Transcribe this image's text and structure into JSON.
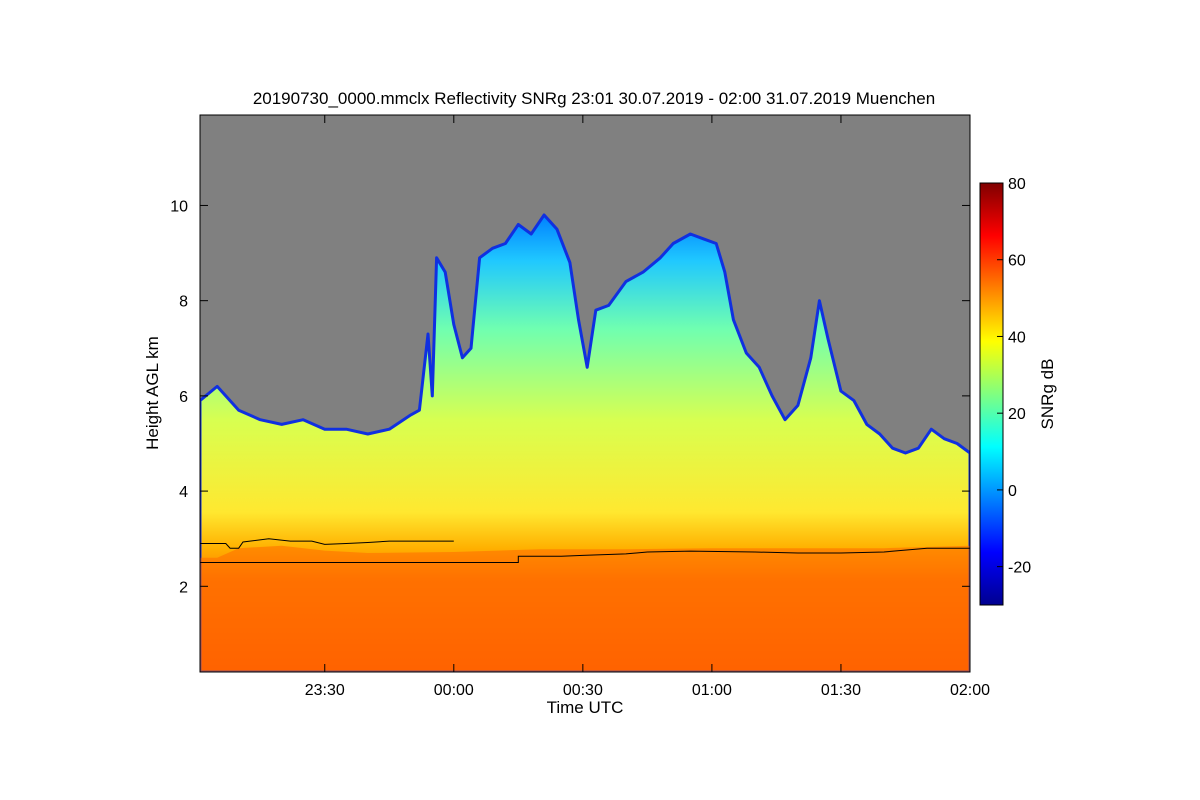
{
  "chart_data": {
    "type": "heatmap",
    "title": "20190730_0000.mmclx Reflectivity SNRg   23:01 30.07.2019 - 02:00 31.07.2019 Muenchen",
    "xlabel": "Time UTC",
    "ylabel": "Height AGL km",
    "x_ticks": [
      "23:30",
      "00:00",
      "00:30",
      "01:00",
      "01:30",
      "02:00"
    ],
    "x_tick_minutes": [
      -30,
      0,
      30,
      60,
      90,
      120
    ],
    "xlim_minutes": [
      -59,
      120
    ],
    "y_ticks": [
      2,
      4,
      6,
      8,
      10
    ],
    "ylim": [
      0.2,
      11.9
    ],
    "colorbar": {
      "label": "SNRg dB",
      "ticks": [
        80,
        60,
        40,
        20,
        0,
        -20
      ],
      "range": [
        -30,
        80
      ],
      "colormap": [
        "#00008f",
        "#0000ff",
        "#0080ff",
        "#00ffff",
        "#80ff80",
        "#ffff00",
        "#ff8000",
        "#ff0000",
        "#800000"
      ]
    },
    "background_color": "#808080",
    "cloud_top_km": [
      [
        -59,
        5.9
      ],
      [
        -55,
        6.2
      ],
      [
        -50,
        5.7
      ],
      [
        -45,
        5.5
      ],
      [
        -40,
        5.4
      ],
      [
        -35,
        5.5
      ],
      [
        -30,
        5.3
      ],
      [
        -25,
        5.3
      ],
      [
        -20,
        5.2
      ],
      [
        -15,
        5.3
      ],
      [
        -10,
        5.6
      ],
      [
        -8,
        5.7
      ],
      [
        -6,
        7.3
      ],
      [
        -5,
        6.0
      ],
      [
        -4,
        8.9
      ],
      [
        -2,
        8.6
      ],
      [
        0,
        7.5
      ],
      [
        2,
        6.8
      ],
      [
        4,
        7.0
      ],
      [
        6,
        8.9
      ],
      [
        9,
        9.1
      ],
      [
        12,
        9.2
      ],
      [
        15,
        9.6
      ],
      [
        18,
        9.4
      ],
      [
        21,
        9.8
      ],
      [
        24,
        9.5
      ],
      [
        27,
        8.8
      ],
      [
        29,
        7.6
      ],
      [
        31,
        6.6
      ],
      [
        33,
        7.8
      ],
      [
        36,
        7.9
      ],
      [
        40,
        8.4
      ],
      [
        44,
        8.6
      ],
      [
        48,
        8.9
      ],
      [
        51,
        9.2
      ],
      [
        55,
        9.4
      ],
      [
        58,
        9.3
      ],
      [
        61,
        9.2
      ],
      [
        63,
        8.6
      ],
      [
        65,
        7.6
      ],
      [
        68,
        6.9
      ],
      [
        71,
        6.6
      ],
      [
        74,
        6.0
      ],
      [
        77,
        5.5
      ],
      [
        80,
        5.8
      ],
      [
        83,
        6.8
      ],
      [
        85,
        8.0
      ],
      [
        87,
        7.2
      ],
      [
        90,
        6.1
      ],
      [
        93,
        5.9
      ],
      [
        96,
        5.4
      ],
      [
        99,
        5.2
      ],
      [
        102,
        4.9
      ],
      [
        105,
        4.8
      ],
      [
        108,
        4.9
      ],
      [
        111,
        5.3
      ],
      [
        114,
        5.1
      ],
      [
        117,
        5.0
      ],
      [
        120,
        4.8
      ]
    ],
    "mixed_layer_km": [
      [
        -59,
        2.6
      ],
      [
        -55,
        2.6
      ],
      [
        -50,
        2.8
      ],
      [
        -40,
        2.85
      ],
      [
        -30,
        2.75
      ],
      [
        -20,
        2.7
      ],
      [
        0,
        2.72
      ],
      [
        20,
        2.78
      ],
      [
        40,
        2.78
      ],
      [
        60,
        2.8
      ],
      [
        80,
        2.8
      ],
      [
        100,
        2.8
      ],
      [
        120,
        2.85
      ]
    ],
    "lines": [
      {
        "name": "",
        "points": [
          [
            -59,
            2.9
          ],
          [
            -53,
            2.9
          ],
          [
            -52,
            2.8
          ],
          [
            -50,
            2.8
          ],
          [
            -49,
            2.93
          ],
          [
            -43,
            3.0
          ],
          [
            -38,
            2.95
          ],
          [
            -33,
            2.95
          ],
          [
            -30,
            2.88
          ],
          [
            -25,
            2.9
          ],
          [
            -20,
            2.92
          ],
          [
            -15,
            2.95
          ],
          [
            0,
            2.95
          ]
        ]
      },
      {
        "name": "",
        "points": [
          [
            -59,
            2.5
          ],
          [
            15,
            2.5
          ],
          [
            15,
            2.63
          ],
          [
            25,
            2.63
          ],
          [
            30,
            2.65
          ],
          [
            40,
            2.68
          ],
          [
            45,
            2.72
          ],
          [
            55,
            2.74
          ],
          [
            70,
            2.72
          ],
          [
            80,
            2.7
          ],
          [
            90,
            2.7
          ],
          [
            100,
            2.72
          ],
          [
            110,
            2.8
          ],
          [
            120,
            2.8
          ]
        ]
      }
    ]
  }
}
